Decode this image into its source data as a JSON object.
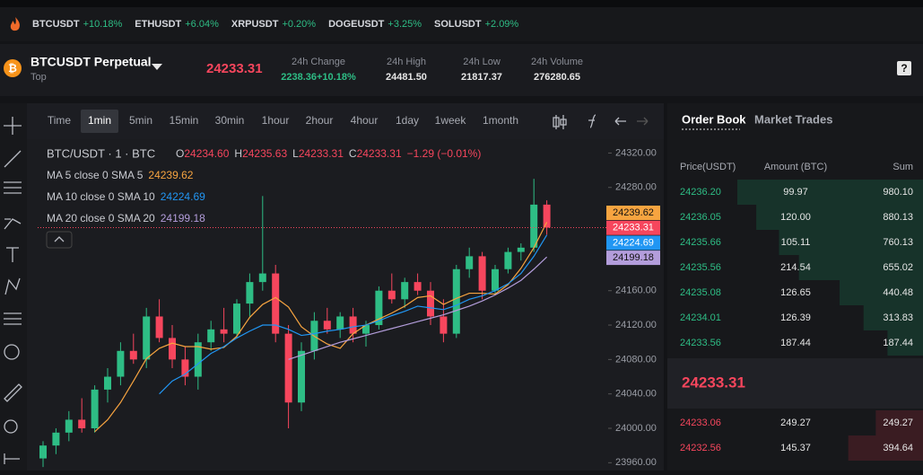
{
  "ticker": [
    {
      "symbol": "BTCUSDT",
      "change": "+10.18%"
    },
    {
      "symbol": "ETHUSDT",
      "change": "+6.04%"
    },
    {
      "symbol": "XRPUSDT",
      "change": "+0.20%"
    },
    {
      "symbol": "DOGEUSDT",
      "change": "+3.25%"
    },
    {
      "symbol": "SOLUSDT",
      "change": "+2.09%"
    }
  ],
  "header": {
    "symbol": "BTCUSDT Perpetual",
    "subtitle": "Top",
    "last_price": "24233.31",
    "help": "?",
    "stats": [
      {
        "label": "24h Change",
        "value": "2238.36+10.18%"
      },
      {
        "label": "24h High",
        "value": "24481.50"
      },
      {
        "label": "24h Low",
        "value": "21817.37"
      },
      {
        "label": "24h Volume",
        "value": "276280.65"
      }
    ]
  },
  "toolbar": {
    "intervals": [
      "Time",
      "1min",
      "5min",
      "15min",
      "30min",
      "1hour",
      "2hour",
      "4hour",
      "1day",
      "1week",
      "1month"
    ]
  },
  "chart_data": {
    "type": "candlestick",
    "title": "BTC/USDT · 1 · BTC",
    "ohlc_legend": [
      {
        "key": "O",
        "value": "24234.60"
      },
      {
        "key": "H",
        "value": "24235.63"
      },
      {
        "key": "L",
        "value": "24233.31"
      },
      {
        "key": "C",
        "value": "24233.31"
      }
    ],
    "change": "−1.29 (−0.01%)",
    "up_color": "#2ebd85",
    "down_color": "#f6465d",
    "candles": {
      "open": [
        23965,
        23980,
        23995,
        24010,
        24000,
        24045,
        24060,
        24090,
        24080,
        24130,
        24105,
        24080,
        24060,
        24100,
        24115,
        24110,
        24145,
        24170,
        24180,
        24110,
        24030,
        24090,
        24125,
        24115,
        24130,
        24110,
        24120,
        24160,
        24150,
        24170,
        24160,
        24130,
        24110,
        24185,
        24200,
        24160,
        24185,
        24205,
        24210,
        24260
      ],
      "high": [
        23985,
        24000,
        24020,
        24035,
        24050,
        24070,
        24100,
        24110,
        24140,
        24150,
        24120,
        24095,
        24110,
        24125,
        24140,
        24150,
        24180,
        24270,
        24190,
        24120,
        24100,
        24135,
        24140,
        24135,
        24140,
        24125,
        24165,
        24180,
        24175,
        24180,
        24170,
        24150,
        24190,
        24210,
        24205,
        24190,
        24210,
        24215,
        24290,
        24265
      ],
      "low": [
        23955,
        23970,
        23985,
        23995,
        23995,
        24030,
        24050,
        24075,
        24070,
        24100,
        24070,
        24050,
        24045,
        24090,
        24100,
        24105,
        24130,
        24160,
        24100,
        24000,
        24020,
        24080,
        24110,
        24105,
        24100,
        24095,
        24115,
        24145,
        24140,
        24155,
        24120,
        24100,
        24105,
        24175,
        24150,
        24155,
        24180,
        24195,
        24205,
        24225
      ],
      "close": [
        23980,
        23995,
        24010,
        24000,
        24045,
        24060,
        24090,
        24080,
        24130,
        24105,
        24080,
        24060,
        24100,
        24115,
        24110,
        24145,
        24170,
        24180,
        24110,
        24030,
        24090,
        24125,
        24115,
        24130,
        24110,
        24120,
        24160,
        24150,
        24170,
        24160,
        24130,
        24110,
        24185,
        24200,
        24160,
        24185,
        24205,
        24210,
        24260,
        24233.31
      ]
    },
    "series": [
      {
        "name": "MA 5 close 0 SMA 5",
        "color": "#f7a440",
        "values": [
          null,
          null,
          null,
          null,
          23996,
          24010,
          24030,
          24055,
          24081,
          24093,
          24099,
          24095,
          24095,
          24092,
          24094,
          24107,
          24129,
          24144,
          24152,
          24141,
          24118,
          24107,
          24098,
          24093,
          24110,
          24120,
          24127,
          24134,
          24142,
          24152,
          24154,
          24144,
          24151,
          24157,
          24157,
          24156,
          24167,
          24186,
          24210,
          24239.62
        ]
      },
      {
        "name": "MA 10 close 0 SMA 10",
        "color": "#2196f3",
        "values": [
          null,
          null,
          null,
          null,
          null,
          null,
          null,
          null,
          null,
          24040,
          24055,
          24063,
          24075,
          24087,
          24095,
          24105,
          24113,
          24120,
          24120,
          24115,
          24108,
          24110,
          24113,
          24115,
          24118,
          24120,
          24125,
          24131,
          24136,
          24142,
          24140,
          24138,
          24143,
          24150,
          24154,
          24160,
          24168,
          24180,
          24200,
          24224.69
        ]
      },
      {
        "name": "MA 20 close 0 SMA 20",
        "color": "#b39ddb",
        "values": [
          null,
          null,
          null,
          null,
          null,
          null,
          null,
          null,
          null,
          null,
          null,
          null,
          null,
          null,
          null,
          null,
          null,
          null,
          null,
          24080,
          24085,
          24090,
          24095,
          24100,
          24104,
          24108,
          24112,
          24116,
          24120,
          24124,
          24128,
          24132,
          24137,
          24142,
          24148,
          24155,
          24163,
          24172,
          24185,
          24199.18
        ]
      }
    ],
    "ylim": [
      23952,
      24334
    ],
    "yticks": [
      {
        "value": 24320,
        "label": "24320.00"
      },
      {
        "value": 24280,
        "label": "24280.00"
      },
      {
        "value": 24160,
        "label": "24160.00"
      },
      {
        "value": 24120,
        "label": "24120.00"
      },
      {
        "value": 24080,
        "label": "24080.00"
      },
      {
        "value": 24040,
        "label": "24040.00"
      },
      {
        "value": 24000,
        "label": "24000.00"
      },
      {
        "value": 23960,
        "label": "23960.00"
      }
    ]
  },
  "order_book": {
    "tabs": [
      "Order Book",
      "Market Trades"
    ],
    "columns": [
      "Price(USDT)",
      "Amount (BTC)",
      "Sum"
    ],
    "upper": [
      {
        "price": "24236.20",
        "amount": "99.97",
        "sum": {
          "value": 980.1,
          "label": "980.10"
        }
      },
      {
        "price": "24236.05",
        "amount": "120.00",
        "sum": {
          "value": 880.13,
          "label": "880.13"
        }
      },
      {
        "price": "24235.66",
        "amount": "105.11",
        "sum": {
          "value": 760.13,
          "label": "760.13"
        }
      },
      {
        "price": "24235.56",
        "amount": "214.54",
        "sum": {
          "value": 655.02,
          "label": "655.02"
        }
      },
      {
        "price": "24235.08",
        "amount": "126.65",
        "sum": {
          "value": 440.48,
          "label": "440.48"
        }
      },
      {
        "price": "24234.01",
        "amount": "126.39",
        "sum": {
          "value": 313.83,
          "label": "313.83"
        }
      },
      {
        "price": "24233.56",
        "amount": "187.44",
        "sum": {
          "value": 187.44,
          "label": "187.44"
        }
      }
    ],
    "mid_price": "24233.31",
    "lower": [
      {
        "price": "24233.06",
        "amount": "249.27",
        "sum": {
          "value": 249.27,
          "label": "249.27"
        }
      },
      {
        "price": "24232.56",
        "amount": "145.37",
        "sum": {
          "value": 394.64,
          "label": "394.64"
        }
      }
    ]
  }
}
